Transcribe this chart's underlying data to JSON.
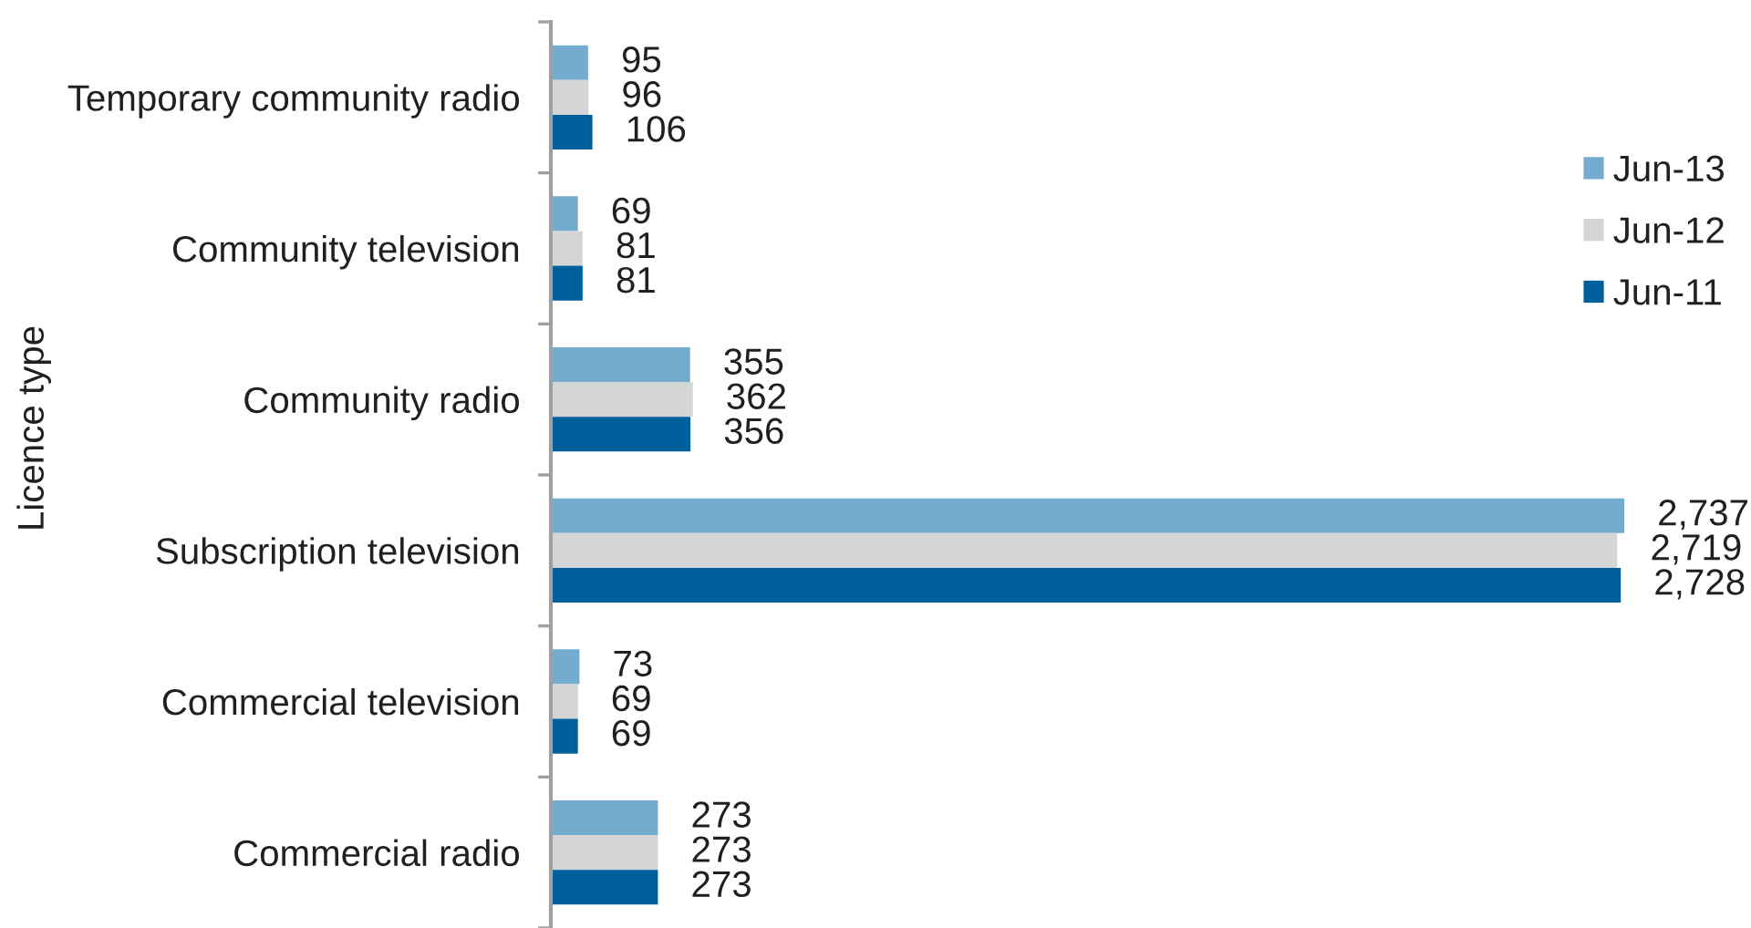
{
  "chart_data": {
    "type": "bar",
    "orientation": "horizontal",
    "ylabel": "Licence type",
    "categories": [
      "Temporary community radio",
      "Community television",
      "Community radio",
      "Subscription television",
      "Commercial television",
      "Commercial radio"
    ],
    "series": [
      {
        "name": "Jun-13",
        "color": "#74acd0",
        "values": [
          95,
          69,
          355,
          2737,
          73,
          273
        ],
        "value_labels": [
          "95",
          "69",
          "355",
          "2,737",
          "73",
          "273"
        ]
      },
      {
        "name": "Jun-12",
        "color": "#d4d5d7",
        "values": [
          96,
          81,
          362,
          2719,
          69,
          273
        ],
        "value_labels": [
          "96",
          "81",
          "362",
          "2,719",
          "69",
          "273"
        ]
      },
      {
        "name": "Jun-11",
        "color": "#00609c",
        "values": [
          106,
          81,
          356,
          2728,
          69,
          273
        ],
        "value_labels": [
          "106",
          "81",
          "356",
          "2,728",
          "69",
          "273"
        ]
      }
    ],
    "legend": "top right",
    "grid": false,
    "tick_labels": "y"
  }
}
